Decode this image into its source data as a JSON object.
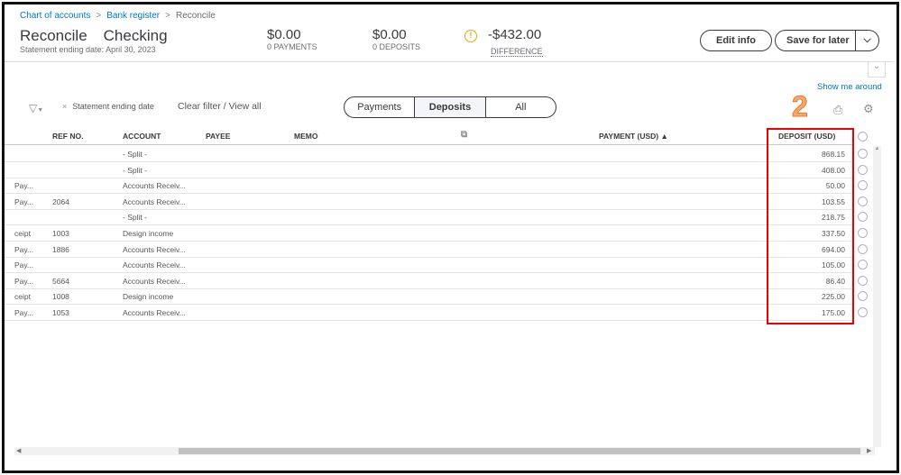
{
  "breadcrumb": [
    "Chart of accounts",
    "Bank register",
    "Reconcile"
  ],
  "header": {
    "title": "Reconcile",
    "account": "Checking",
    "statement_date": "Statement ending date: April 30, 2023",
    "payments_amount": "$0.00",
    "payments_label": "0 PAYMENTS",
    "deposits_amount": "$0.00",
    "deposits_label": "0 DEPOSITS",
    "difference_amount": "-$432.00",
    "difference_label": "DIFFERENCE",
    "warning_icon": "!"
  },
  "buttons": {
    "edit_info": "Edit info",
    "save_for_later": "Save for later"
  },
  "show_me_around": "Show me around",
  "filter": {
    "chip": "Statement ending date",
    "clear": "Clear filter / View all"
  },
  "tabs": [
    {
      "label": "Payments"
    },
    {
      "label": "Deposits",
      "active": true
    },
    {
      "label": "All"
    }
  ],
  "annotation": "2",
  "columns": {
    "ref": "REF NO.",
    "account": "ACCOUNT",
    "payee": "PAYEE",
    "memo": "MEMO",
    "payment": "PAYMENT (USD)",
    "deposit": "DEPOSIT (USD)"
  },
  "rows": [
    {
      "type": "",
      "ref": "",
      "account": "- Split -",
      "deposit": "868.15"
    },
    {
      "type": "",
      "ref": "",
      "account": "- Split -",
      "deposit": "408.00"
    },
    {
      "type": "Pay...",
      "ref": "",
      "account": "Accounts Receiv...",
      "deposit": "50.00"
    },
    {
      "type": "Pay...",
      "ref": "2064",
      "account": "Accounts Receiv...",
      "deposit": "103.55"
    },
    {
      "type": "",
      "ref": "",
      "account": "- Split -",
      "deposit": "218.75"
    },
    {
      "type": "ceipt",
      "ref": "1003",
      "account": "Design income",
      "deposit": "337.50"
    },
    {
      "type": "Pay...",
      "ref": "1886",
      "account": "Accounts Receiv...",
      "deposit": "694.00"
    },
    {
      "type": "Pay...",
      "ref": "",
      "account": "Accounts Receiv...",
      "deposit": "105.00"
    },
    {
      "type": "Pay...",
      "ref": "5664",
      "account": "Accounts Receiv...",
      "deposit": "86.40"
    },
    {
      "type": "ceipt",
      "ref": "1008",
      "account": "Design income",
      "deposit": "225.00"
    },
    {
      "type": "Pay...",
      "ref": "1053",
      "account": "Accounts Receiv...",
      "deposit": "175.00"
    }
  ],
  "colors": {
    "link": "#0077c5",
    "warning": "#f2a100",
    "highlight": "#ee0000",
    "annotation": "#f6a86b"
  }
}
